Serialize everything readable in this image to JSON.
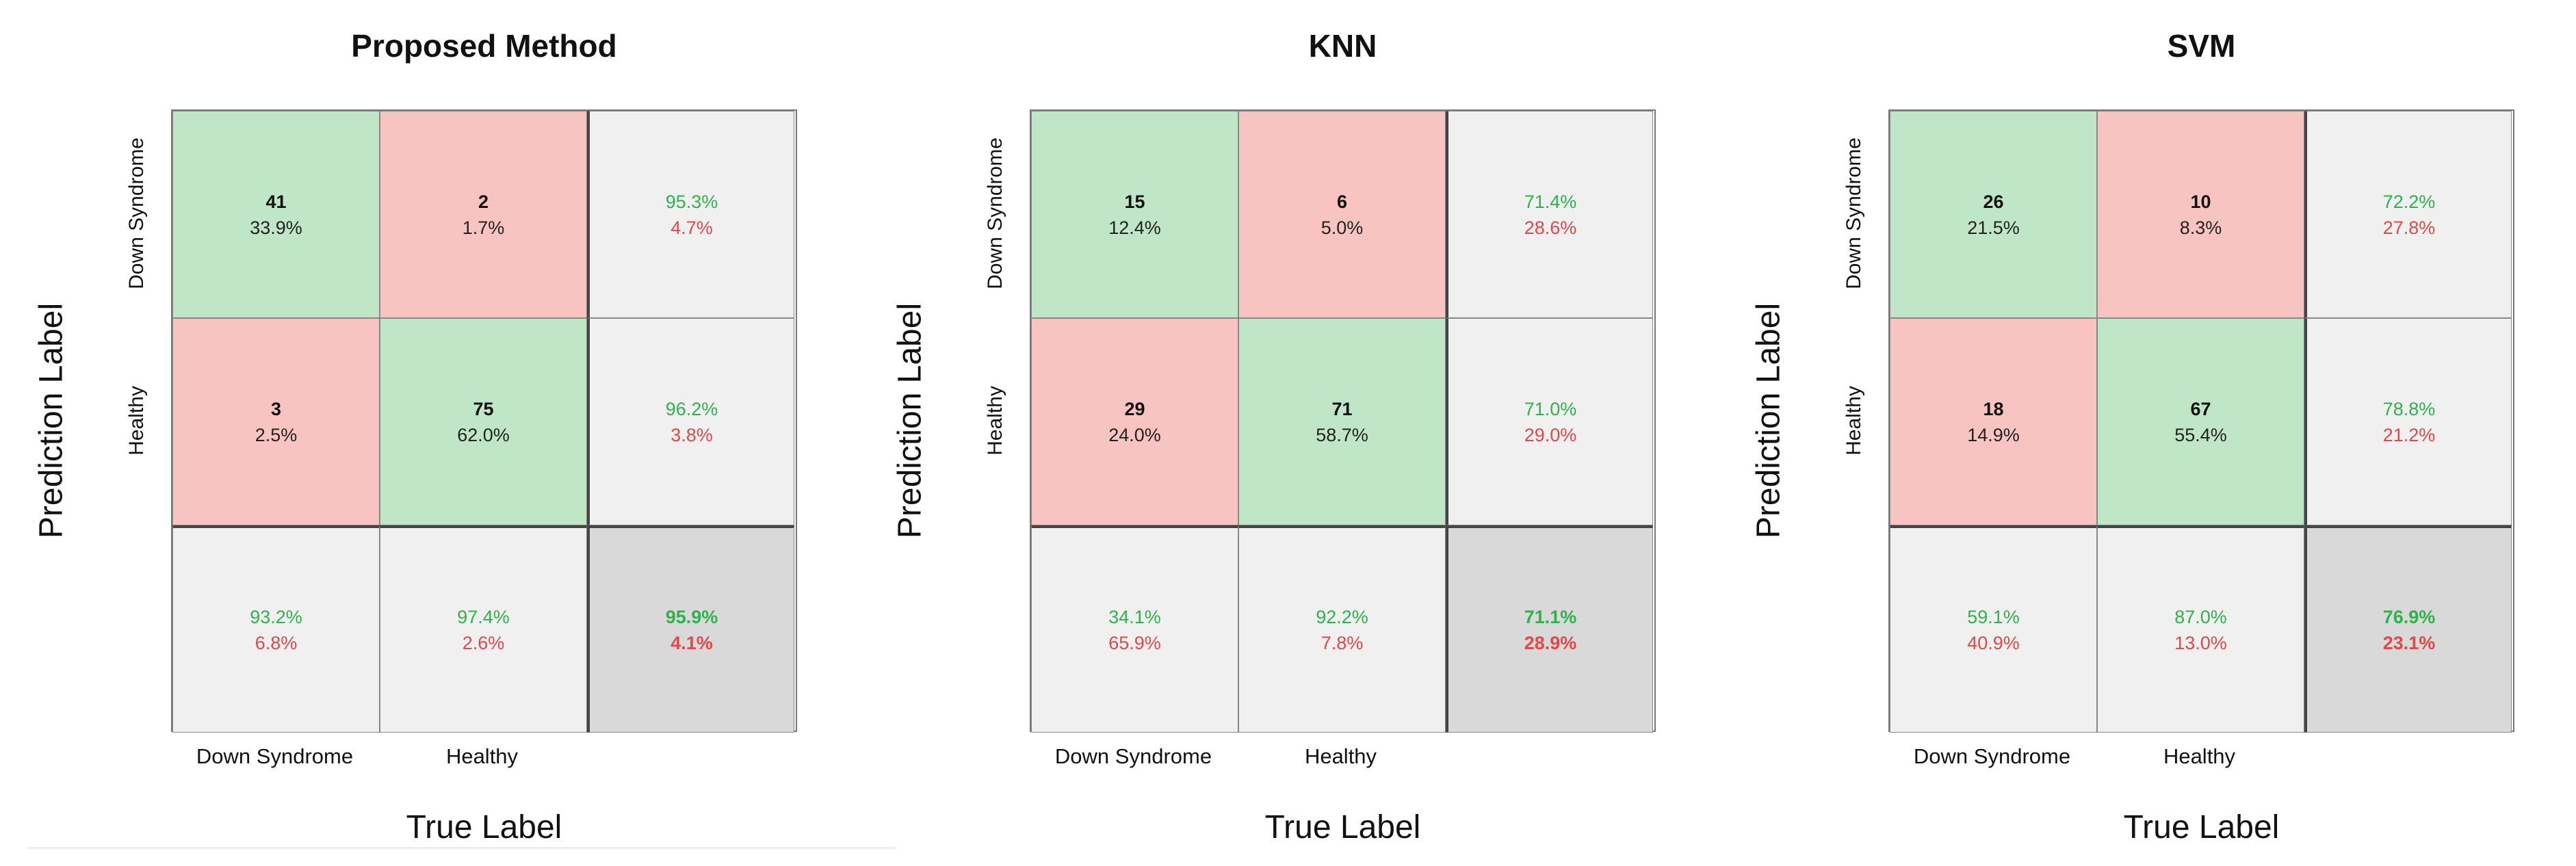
{
  "chart_data": [
    {
      "type": "heatmap",
      "title": "Proposed Method",
      "ylabel": "Prediction Label",
      "xlabel": "True Label",
      "row_labels": [
        "Down Syndrome",
        "Healthy"
      ],
      "col_labels": [
        "Down Syndrome",
        "Healthy"
      ],
      "matrix": [
        [
          {
            "count": "41",
            "pct": "33.9%"
          },
          {
            "count": "2",
            "pct": "1.7%"
          }
        ],
        [
          {
            "count": "3",
            "pct": "2.5%"
          },
          {
            "count": "75",
            "pct": "62.0%"
          }
        ]
      ],
      "row_summary": [
        {
          "correct": "95.3%",
          "incorrect": "4.7%"
        },
        {
          "correct": "96.2%",
          "incorrect": "3.8%"
        }
      ],
      "col_summary": [
        {
          "correct": "93.2%",
          "incorrect": "6.8%"
        },
        {
          "correct": "97.4%",
          "incorrect": "2.6%"
        }
      ],
      "overall": {
        "correct": "95.9%",
        "incorrect": "4.1%"
      }
    },
    {
      "type": "heatmap",
      "title": "KNN",
      "ylabel": "Prediction Label",
      "xlabel": "True Label",
      "row_labels": [
        "Down Syndrome",
        "Healthy"
      ],
      "col_labels": [
        "Down Syndrome",
        "Healthy"
      ],
      "matrix": [
        [
          {
            "count": "15",
            "pct": "12.4%"
          },
          {
            "count": "6",
            "pct": "5.0%"
          }
        ],
        [
          {
            "count": "29",
            "pct": "24.0%"
          },
          {
            "count": "71",
            "pct": "58.7%"
          }
        ]
      ],
      "row_summary": [
        {
          "correct": "71.4%",
          "incorrect": "28.6%"
        },
        {
          "correct": "71.0%",
          "incorrect": "29.0%"
        }
      ],
      "col_summary": [
        {
          "correct": "34.1%",
          "incorrect": "65.9%"
        },
        {
          "correct": "92.2%",
          "incorrect": "7.8%"
        }
      ],
      "overall": {
        "correct": "71.1%",
        "incorrect": "28.9%"
      }
    },
    {
      "type": "heatmap",
      "title": "SVM",
      "ylabel": "Prediction Label",
      "xlabel": "True Label",
      "row_labels": [
        "Down Syndrome",
        "Healthy"
      ],
      "col_labels": [
        "Down Syndrome",
        "Healthy"
      ],
      "matrix": [
        [
          {
            "count": "26",
            "pct": "21.5%"
          },
          {
            "count": "10",
            "pct": "8.3%"
          }
        ],
        [
          {
            "count": "18",
            "pct": "14.9%"
          },
          {
            "count": "67",
            "pct": "55.4%"
          }
        ]
      ],
      "row_summary": [
        {
          "correct": "72.2%",
          "incorrect": "27.8%"
        },
        {
          "correct": "78.8%",
          "incorrect": "21.2%"
        }
      ],
      "col_summary": [
        {
          "correct": "59.1%",
          "incorrect": "40.9%"
        },
        {
          "correct": "87.0%",
          "incorrect": "13.0%"
        }
      ],
      "overall": {
        "correct": "76.9%",
        "incorrect": "23.1%"
      }
    }
  ],
  "colors": {
    "correct_bg": "#bfe6c6",
    "wrong_bg": "#f7c4c2",
    "summary_bg": "#f0f0f0",
    "overall_bg": "#d9d9d9",
    "good_text": "#2db34a",
    "bad_text": "#e14848"
  }
}
